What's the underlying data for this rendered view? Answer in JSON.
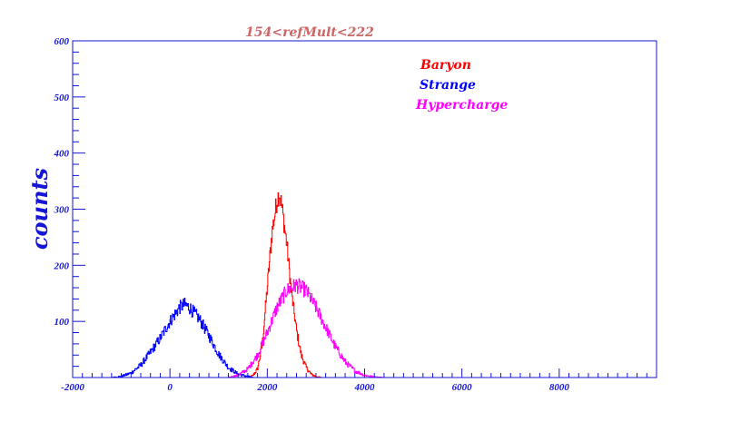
{
  "chart_data": {
    "type": "line",
    "title": "154<refMult<222",
    "xlabel": "",
    "ylabel": "counts",
    "xlim": [
      -2000,
      10000
    ],
    "ylim": [
      0,
      600
    ],
    "x_ticks": [
      -2000,
      0,
      2000,
      4000,
      6000,
      8000
    ],
    "x_tick_labels": [
      "-2000",
      "0",
      "2000",
      "4000",
      "6000",
      "8000"
    ],
    "y_ticks": [
      100,
      200,
      300,
      400,
      500,
      600
    ],
    "y_tick_labels": [
      "100",
      "200",
      "300",
      "400",
      "500",
      "600"
    ],
    "grid": false,
    "legend_position": "top-right",
    "series": [
      {
        "name": "Baryon",
        "color": "#ff0000",
        "x": [
          1600,
          1700,
          1800,
          1900,
          2000,
          2100,
          2200,
          2250,
          2300,
          2400,
          2500,
          2600,
          2700,
          2800,
          2900,
          3000,
          3100
        ],
        "y": [
          0,
          3,
          15,
          60,
          160,
          260,
          315,
          330,
          305,
          240,
          150,
          85,
          40,
          18,
          6,
          2,
          0
        ]
      },
      {
        "name": "Strange",
        "color": "#0000ff",
        "x": [
          -1200,
          -1000,
          -800,
          -600,
          -400,
          -200,
          0,
          200,
          300,
          400,
          600,
          800,
          1000,
          1200,
          1400,
          1600,
          1700
        ],
        "y": [
          0,
          2,
          8,
          22,
          45,
          70,
          100,
          125,
          130,
          125,
          105,
          75,
          42,
          18,
          6,
          2,
          0
        ]
      },
      {
        "name": "Hypercharge",
        "color": "#ff00ff",
        "x": [
          1200,
          1400,
          1600,
          1800,
          2000,
          2200,
          2400,
          2600,
          2800,
          3000,
          3200,
          3400,
          3600,
          3800,
          4000,
          4200,
          4400
        ],
        "y": [
          0,
          4,
          15,
          40,
          80,
          125,
          155,
          165,
          155,
          125,
          90,
          55,
          28,
          12,
          4,
          1,
          0
        ]
      }
    ]
  }
}
